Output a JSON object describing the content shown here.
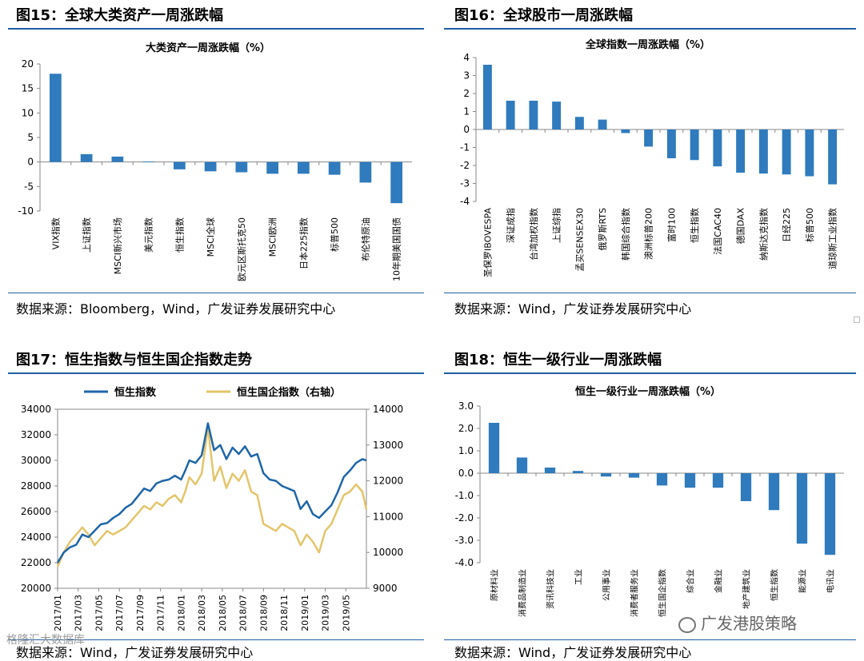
{
  "colors": {
    "bar": "#2f7bbd",
    "rule": "#1f5fa3",
    "hs": "#1f66a8",
    "hscei": "#e3c56b"
  },
  "fig15": {
    "title": "图15：全球大类资产一周涨跌幅",
    "source": "数据来源：Bloomberg，Wind，广发证券发展研究中心",
    "chart_data": {
      "type": "bar",
      "title": "大类资产一周涨跌幅（%）",
      "categories": [
        "VIX指数",
        "上证指数",
        "MSCI新兴市场",
        "美元指数",
        "恒生指数",
        "MSCI全球",
        "欧元区斯托克50",
        "MSCI欧洲",
        "日本225指数",
        "标普500",
        "布伦特原油",
        "10年期美国国债"
      ],
      "values": [
        18.0,
        1.6,
        1.1,
        0.1,
        -1.5,
        -1.9,
        -2.1,
        -2.4,
        -2.4,
        -2.6,
        -4.2,
        -8.4
      ],
      "yticks": [
        20,
        15,
        10,
        5,
        0,
        -5,
        -10
      ],
      "ylim": [
        -10,
        20
      ]
    }
  },
  "fig16": {
    "title": "图16：全球股市一周涨跌幅",
    "source": "数据来源：Wind，广发证券发展研究中心",
    "chart_data": {
      "type": "bar",
      "title": "全球指数一周涨跌幅（%）",
      "categories": [
        "圣保罗IBOVESPA",
        "深证成指",
        "台湾加权指数",
        "上证综指",
        "孟买SENSEX30",
        "俄罗斯RTS",
        "韩国综合指数",
        "澳洲标普200",
        "富时100",
        "恒生指数",
        "法国CAC40",
        "德国DAX",
        "纳斯达克指数",
        "日经225",
        "标普500",
        "道琼斯工业指数"
      ],
      "values": [
        3.6,
        1.6,
        1.6,
        1.55,
        0.7,
        0.55,
        -0.2,
        -0.95,
        -1.6,
        -1.7,
        -2.05,
        -2.4,
        -2.45,
        -2.5,
        -2.6,
        -3.05
      ],
      "yticks": [
        4,
        3,
        2,
        1,
        0,
        -1,
        -2,
        -3,
        -4
      ],
      "ylim": [
        -4,
        4
      ]
    }
  },
  "fig17": {
    "title": "图17：恒生指数与恒生国企指数走势",
    "source": "数据来源：Wind，广发证券发展研究中心",
    "chart_data": {
      "type": "line",
      "legend": [
        "恒生指数",
        "恒生国企指数（右轴）"
      ],
      "xticks": [
        "2017/01",
        "2017/03",
        "2017/05",
        "2017/07",
        "2017/09",
        "2017/11",
        "2018/01",
        "2018/03",
        "2018/05",
        "2018/07",
        "2018/09",
        "2018/11",
        "2019/01",
        "2019/03",
        "2019/05"
      ],
      "yleft": [
        34000,
        32000,
        30000,
        28000,
        26000,
        24000,
        22000,
        20000
      ],
      "yright": [
        14000,
        13000,
        12000,
        11000,
        10000,
        9000
      ],
      "left_range": [
        20000,
        34000
      ],
      "right_range": [
        9000,
        14000
      ],
      "series": [
        {
          "name": "恒生指数",
          "axis": "left",
          "x": [
            0,
            0.3,
            0.6,
            0.9,
            1.2,
            1.5,
            1.8,
            2.1,
            2.4,
            2.7,
            3.0,
            3.3,
            3.6,
            3.9,
            4.2,
            4.5,
            4.8,
            5.1,
            5.4,
            5.7,
            6.0,
            6.2,
            6.4,
            6.7,
            7.0,
            7.3,
            7.6,
            7.9,
            8.2,
            8.5,
            8.8,
            9.1,
            9.4,
            9.7,
            10.0,
            10.3,
            10.6,
            10.9,
            11.2,
            11.5,
            11.8,
            12.1,
            12.4,
            12.7,
            13.0,
            13.3,
            13.6,
            13.9,
            14.2,
            14.5,
            14.8,
            15.0
          ],
          "values": [
            22000,
            22800,
            23200,
            23400,
            24200,
            24000,
            24500,
            25000,
            25100,
            25500,
            25800,
            26300,
            26600,
            27200,
            27800,
            27600,
            28200,
            28400,
            28500,
            28800,
            28500,
            29200,
            30000,
            29800,
            30400,
            32900,
            30800,
            31200,
            30100,
            31000,
            30500,
            31100,
            30300,
            30500,
            29000,
            28500,
            28400,
            28000,
            27800,
            27600,
            26200,
            26800,
            25800,
            25500,
            26000,
            26500,
            27500,
            28700,
            29200,
            29800,
            30100,
            30000
          ]
        },
        {
          "name": "恒生国企指数（右轴）",
          "axis": "right",
          "x": [
            0,
            0.3,
            0.6,
            0.9,
            1.2,
            1.5,
            1.8,
            2.1,
            2.4,
            2.7,
            3.0,
            3.3,
            3.6,
            3.9,
            4.2,
            4.5,
            4.8,
            5.1,
            5.4,
            5.7,
            6.0,
            6.2,
            6.4,
            6.7,
            7.0,
            7.3,
            7.6,
            7.9,
            8.2,
            8.5,
            8.8,
            9.1,
            9.4,
            9.7,
            10.0,
            10.3,
            10.6,
            10.9,
            11.2,
            11.5,
            11.8,
            12.1,
            12.4,
            12.7,
            13.0,
            13.3,
            13.6,
            13.9,
            14.2,
            14.5,
            14.8,
            15.0
          ],
          "values": [
            9600,
            10000,
            10300,
            10500,
            10700,
            10500,
            10200,
            10400,
            10600,
            10500,
            10600,
            10700,
            10900,
            11100,
            11300,
            11200,
            11400,
            11300,
            11500,
            11600,
            11400,
            11700,
            12100,
            11900,
            12200,
            13500,
            12000,
            12400,
            11800,
            12200,
            12000,
            12300,
            11700,
            11600,
            10800,
            10700,
            10600,
            10800,
            10700,
            10600,
            10200,
            10500,
            10300,
            10000,
            10600,
            10800,
            11200,
            11600,
            11700,
            11900,
            11700,
            11200
          ]
        }
      ]
    }
  },
  "fig18": {
    "title": "图18：恒生一级行业一周涨跌幅",
    "source": "数据来源：Wind，广发证券发展研究中心",
    "chart_data": {
      "type": "bar",
      "title": "恒生一级行业一周涨跌幅（%）",
      "categories": [
        "原材料业",
        "消费品制造业",
        "资讯科技业",
        "工业",
        "公用事业",
        "消费者服务业",
        "恒生国企指数",
        "综合业",
        "金融业",
        "地产建筑业",
        "恒生指数",
        "能源业",
        "电讯业"
      ],
      "values": [
        2.25,
        0.7,
        0.25,
        0.1,
        -0.15,
        -0.2,
        -0.55,
        -0.65,
        -0.65,
        -1.25,
        -1.65,
        -3.15,
        -3.65
      ],
      "yticks": [
        "3.0",
        "2.0",
        "1.0",
        "0.0",
        "-1.0",
        "-2.0",
        "-3.0",
        "-4.0"
      ],
      "ylim": [
        -4,
        3
      ]
    }
  },
  "watermarks": {
    "left": "格隆汇大数据库",
    "right": "广发港股策略"
  }
}
